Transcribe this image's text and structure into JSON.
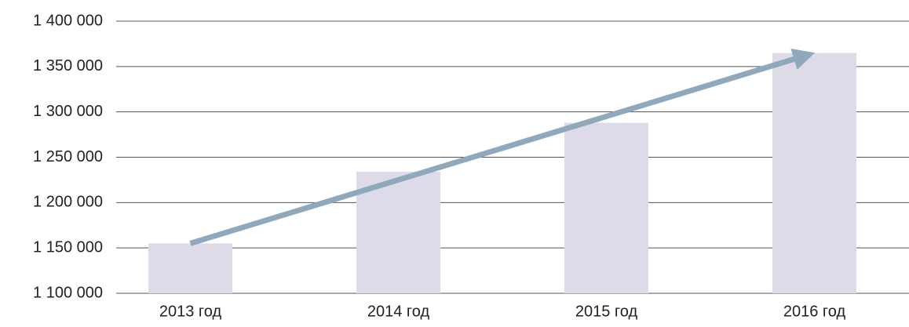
{
  "chart_data": {
    "type": "bar",
    "categories": [
      "2013 год",
      "2014 год",
      "2015 год",
      "2016 год"
    ],
    "values": [
      1155000,
      1234000,
      1288000,
      1365000
    ],
    "color": "#dedbe9",
    "ylim": [
      1100000,
      1400000
    ],
    "yticks": [
      {
        "value": 1100000,
        "label": "1 100 000"
      },
      {
        "value": 1150000,
        "label": "1 150 000"
      },
      {
        "value": 1200000,
        "label": "1 200 000"
      },
      {
        "value": 1250000,
        "label": "1 250 000"
      },
      {
        "value": 1300000,
        "label": "1 300 000"
      },
      {
        "value": 1350000,
        "label": "1 350 000"
      },
      {
        "value": 1400000,
        "label": "1 400 000"
      }
    ],
    "grid": true
  }
}
